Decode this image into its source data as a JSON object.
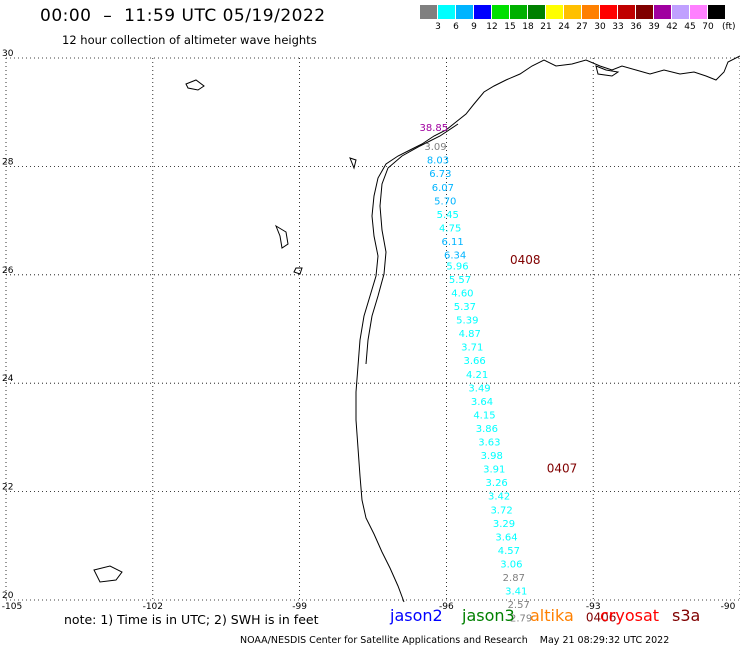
{
  "header": {
    "title": "00:00  –  11:59 UTC 05/19/2022",
    "subtitle": "12 hour collection of altimeter wave heights"
  },
  "colorbar": {
    "colors": [
      "#808080",
      "#00ffff",
      "#00b4ff",
      "#0000ff",
      "#00e000",
      "#00b000",
      "#008000",
      "#ffff00",
      "#ffc000",
      "#ff8000",
      "#ff0000",
      "#c00000",
      "#800000",
      "#a000a0",
      "#c0a0ff",
      "#ff80ff",
      "#000000"
    ],
    "labels": [
      "3",
      "6",
      "9",
      "12",
      "15",
      "18",
      "21",
      "24",
      "27",
      "30",
      "33",
      "36",
      "39",
      "42",
      "45",
      "70"
    ],
    "units": "(ft)"
  },
  "axes": {
    "lon_ticks": [
      "-105",
      "-102",
      "-99",
      "-96",
      "-93",
      "-90"
    ],
    "lat_ticks": [
      "30",
      "28",
      "26",
      "24",
      "22",
      "20"
    ]
  },
  "chart_data": {
    "type": "scatter",
    "xlim": [
      -105,
      -90
    ],
    "ylim": [
      20,
      30
    ],
    "grid": true,
    "tracks": [
      {
        "name": "jason3",
        "label": "0408",
        "label_lon": -94.7,
        "label_lat": 26.2,
        "label_color": "#800000",
        "points": [
          {
            "lon": -96.55,
            "lat": 28.65,
            "v": "38.85",
            "c": "#a000a0"
          },
          {
            "lon": -96.45,
            "lat": 28.3,
            "v": "3.09",
            "c": "#808080"
          },
          {
            "lon": -96.4,
            "lat": 28.05,
            "v": "8.03",
            "c": "#00b4ff"
          },
          {
            "lon": -96.35,
            "lat": 27.8,
            "v": "6.73",
            "c": "#00b4ff"
          },
          {
            "lon": -96.3,
            "lat": 27.55,
            "v": "6.07",
            "c": "#00b4ff"
          },
          {
            "lon": -96.25,
            "lat": 27.3,
            "v": "5.70",
            "c": "#00b4ff"
          },
          {
            "lon": -96.2,
            "lat": 27.05,
            "v": "5.45",
            "c": "#00ffff"
          },
          {
            "lon": -96.15,
            "lat": 26.8,
            "v": "4.75",
            "c": "#00ffff"
          },
          {
            "lon": -96.1,
            "lat": 26.55,
            "v": "6.11",
            "c": "#00b4ff"
          },
          {
            "lon": -96.05,
            "lat": 26.3,
            "v": "6.34",
            "c": "#00b4ff"
          },
          {
            "lon": -96.0,
            "lat": 26.1,
            "v": "5.96",
            "c": "#00ffff"
          },
          {
            "lon": -95.95,
            "lat": 25.85,
            "v": "5.57",
            "c": "#00ffff"
          },
          {
            "lon": -95.9,
            "lat": 25.6,
            "v": "4.60",
            "c": "#00ffff"
          },
          {
            "lon": -95.85,
            "lat": 25.35,
            "v": "5.37",
            "c": "#00ffff"
          },
          {
            "lon": -95.8,
            "lat": 25.1,
            "v": "5.39",
            "c": "#00ffff"
          },
          {
            "lon": -95.75,
            "lat": 24.85,
            "v": "4.87",
            "c": "#00ffff"
          },
          {
            "lon": -95.7,
            "lat": 24.6,
            "v": "3.71",
            "c": "#00ffff"
          },
          {
            "lon": -95.65,
            "lat": 24.35,
            "v": "3.66",
            "c": "#00ffff"
          },
          {
            "lon": -95.6,
            "lat": 24.1,
            "v": "4.21",
            "c": "#00ffff"
          },
          {
            "lon": -95.55,
            "lat": 23.85,
            "v": "3.49",
            "c": "#00ffff"
          },
          {
            "lon": -95.5,
            "lat": 23.6,
            "v": "3.64",
            "c": "#00ffff"
          },
          {
            "lon": -95.45,
            "lat": 23.35,
            "v": "4.15",
            "c": "#00ffff"
          },
          {
            "lon": -95.4,
            "lat": 23.1,
            "v": "3.86",
            "c": "#00ffff"
          },
          {
            "lon": -95.35,
            "lat": 22.85,
            "v": "3.63",
            "c": "#00ffff"
          },
          {
            "lon": -95.3,
            "lat": 22.6,
            "v": "3.98",
            "c": "#00ffff"
          },
          {
            "lon": -95.25,
            "lat": 22.35,
            "v": "3.91",
            "c": "#00ffff"
          }
        ]
      },
      {
        "name": "jason3-b",
        "label": "0407",
        "label_lon": -93.95,
        "label_lat": 22.35,
        "label_color": "#800000",
        "points": [
          {
            "lon": -95.2,
            "lat": 22.1,
            "v": "3.26",
            "c": "#00ffff"
          },
          {
            "lon": -95.15,
            "lat": 21.85,
            "v": "3.42",
            "c": "#00ffff"
          },
          {
            "lon": -95.1,
            "lat": 21.6,
            "v": "3.72",
            "c": "#00ffff"
          },
          {
            "lon": -95.05,
            "lat": 21.35,
            "v": "3.29",
            "c": "#00ffff"
          },
          {
            "lon": -95.0,
            "lat": 21.1,
            "v": "3.64",
            "c": "#00ffff"
          },
          {
            "lon": -94.95,
            "lat": 20.85,
            "v": "4.57",
            "c": "#00ffff"
          },
          {
            "lon": -94.9,
            "lat": 20.6,
            "v": "3.06",
            "c": "#00ffff"
          },
          {
            "lon": -94.85,
            "lat": 20.35,
            "v": "2.87",
            "c": "#808080"
          },
          {
            "lon": -94.8,
            "lat": 20.1,
            "v": "3.41",
            "c": "#00ffff"
          },
          {
            "lon": -94.75,
            "lat": 19.85,
            "v": "2.57",
            "c": "#808080"
          },
          {
            "lon": -94.7,
            "lat": 19.6,
            "v": "2.79",
            "c": "#808080"
          }
        ]
      },
      {
        "name": "jason3-c",
        "label": "0406",
        "label_lon": -93.15,
        "label_lat": 19.6,
        "label_color": "#800000",
        "points": []
      }
    ]
  },
  "footer": {
    "note": "note:  1) Time is in UTC;  2) SWH is in feet",
    "satellites": [
      {
        "name": "jason2",
        "color": "#0000ff"
      },
      {
        "name": "jason3",
        "color": "#008000"
      },
      {
        "name": "altika",
        "color": "#ff8000"
      },
      {
        "name": "cryosat",
        "color": "#ff0000"
      },
      {
        "name": "s3a",
        "color": "#800000"
      }
    ],
    "credit": "NOAA/NESDIS Center for Satellite Applications and Research    May 21 08:29:32 UTC 2022"
  }
}
